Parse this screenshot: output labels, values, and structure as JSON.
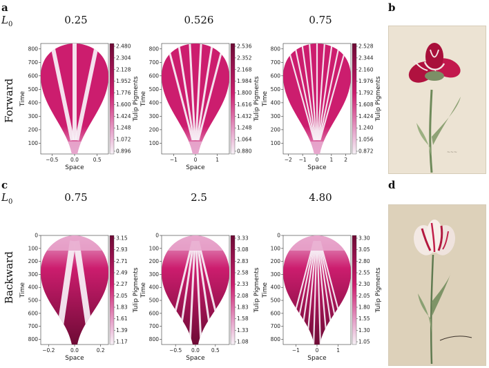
{
  "labels": {
    "a": "a",
    "b": "b",
    "c": "c",
    "d": "d",
    "L": "L",
    "L_sub": "0",
    "forward": "Forward",
    "backward": "Backward"
  },
  "chart_data": [
    {
      "type": "heatmap",
      "row": "forward",
      "title": "0.25",
      "xlabel": "Space",
      "ylabel": "Time",
      "cbar_label": "Tulip Pigments",
      "xticks": [
        "−0.5",
        "0.0",
        "0.5"
      ],
      "xvals": [
        -0.5,
        0,
        0.5
      ],
      "xlim": [
        -0.75,
        0.75
      ],
      "yticks": [
        "100",
        "200",
        "300",
        "400",
        "500",
        "600",
        "700",
        "800"
      ],
      "ylim": [
        20,
        840
      ],
      "y_inverted": false,
      "cbar_ticks": [
        "2.480",
        "2.304",
        "2.128",
        "1.952",
        "1.776",
        "1.600",
        "1.424",
        "1.248",
        "1.072",
        "0.896"
      ],
      "stripes": 3
    },
    {
      "type": "heatmap",
      "row": "forward",
      "title": "0.526",
      "xlabel": "Space",
      "ylabel": "Time",
      "cbar_label": "Tulip Pigments",
      "xticks": [
        "−1",
        "0",
        "1"
      ],
      "xvals": [
        -1,
        0,
        1
      ],
      "xlim": [
        -1.55,
        1.55
      ],
      "yticks": [
        "100",
        "200",
        "300",
        "400",
        "500",
        "600",
        "700",
        "800"
      ],
      "ylim": [
        20,
        840
      ],
      "y_inverted": false,
      "cbar_ticks": [
        "2.536",
        "2.352",
        "2.168",
        "1.984",
        "1.800",
        "1.616",
        "1.432",
        "1.248",
        "1.064",
        "0.880"
      ],
      "stripes": 6
    },
    {
      "type": "heatmap",
      "row": "forward",
      "title": "0.75",
      "xlabel": "Space",
      "ylabel": "Time",
      "cbar_label": "Tulip Pigments",
      "xticks": [
        "−2",
        "−1",
        "0",
        "1",
        "2"
      ],
      "xvals": [
        -2,
        -1,
        0,
        1,
        2
      ],
      "xlim": [
        -2.35,
        2.35
      ],
      "yticks": [
        "100",
        "200",
        "300",
        "400",
        "500",
        "600",
        "700",
        "800"
      ],
      "ylim": [
        20,
        840
      ],
      "y_inverted": false,
      "cbar_ticks": [
        "2.528",
        "2.344",
        "2.160",
        "1.976",
        "1.792",
        "1.608",
        "1.424",
        "1.240",
        "1.056",
        "0.872"
      ],
      "stripes": 9
    },
    {
      "type": "heatmap",
      "row": "backward",
      "title": "0.75",
      "xlabel": "Space",
      "ylabel": "Time",
      "cbar_label": "Tulip Pigments",
      "xticks": [
        "−0.2",
        "0.0",
        "0.2"
      ],
      "xvals": [
        -0.2,
        0,
        0.2
      ],
      "xlim": [
        -0.26,
        0.26
      ],
      "yticks": [
        "0",
        "100",
        "200",
        "300",
        "400",
        "500",
        "600",
        "700",
        "800"
      ],
      "ylim": [
        0,
        840
      ],
      "y_inverted": true,
      "cbar_ticks": [
        "3.15",
        "2.93",
        "2.71",
        "2.49",
        "2.27",
        "2.05",
        "1.83",
        "1.61",
        "1.39",
        "1.17"
      ],
      "stripes": 2
    },
    {
      "type": "heatmap",
      "row": "backward",
      "title": "2.5",
      "xlabel": "Space",
      "ylabel": "Time",
      "cbar_label": "Tulip Pigments",
      "xticks": [
        "−0.5",
        "0.0",
        "0.5"
      ],
      "xvals": [
        -0.5,
        0,
        0.5
      ],
      "xlim": [
        -0.85,
        0.85
      ],
      "yticks": [
        "0",
        "100",
        "200",
        "300",
        "400",
        "500",
        "600",
        "700",
        "800"
      ],
      "ylim": [
        0,
        840
      ],
      "y_inverted": true,
      "cbar_ticks": [
        "3.33",
        "3.08",
        "2.83",
        "2.58",
        "2.33",
        "2.08",
        "1.83",
        "1.58",
        "1.33",
        "1.08"
      ],
      "stripes": 6
    },
    {
      "type": "heatmap",
      "row": "backward",
      "title": "4.80",
      "xlabel": "Space",
      "ylabel": "Time",
      "cbar_label": "Tulip Pigments",
      "xticks": [
        "−1",
        "0",
        "1"
      ],
      "xvals": [
        -1,
        0,
        1
      ],
      "xlim": [
        -1.6,
        1.6
      ],
      "yticks": [
        "0",
        "100",
        "200",
        "300",
        "400",
        "500",
        "600",
        "700",
        "800"
      ],
      "ylim": [
        0,
        840
      ],
      "y_inverted": true,
      "cbar_ticks": [
        "3.30",
        "3.05",
        "2.80",
        "2.55",
        "2.30",
        "2.05",
        "1.80",
        "1.55",
        "1.30",
        "1.05"
      ],
      "stripes": 10
    }
  ],
  "colors": {
    "pink_dark": "#6e0a35",
    "pink": "#cc1d6e",
    "pink_light": "#e7a7cd",
    "white": "#f7f2f7",
    "photo_bg": "#ece3d3"
  }
}
